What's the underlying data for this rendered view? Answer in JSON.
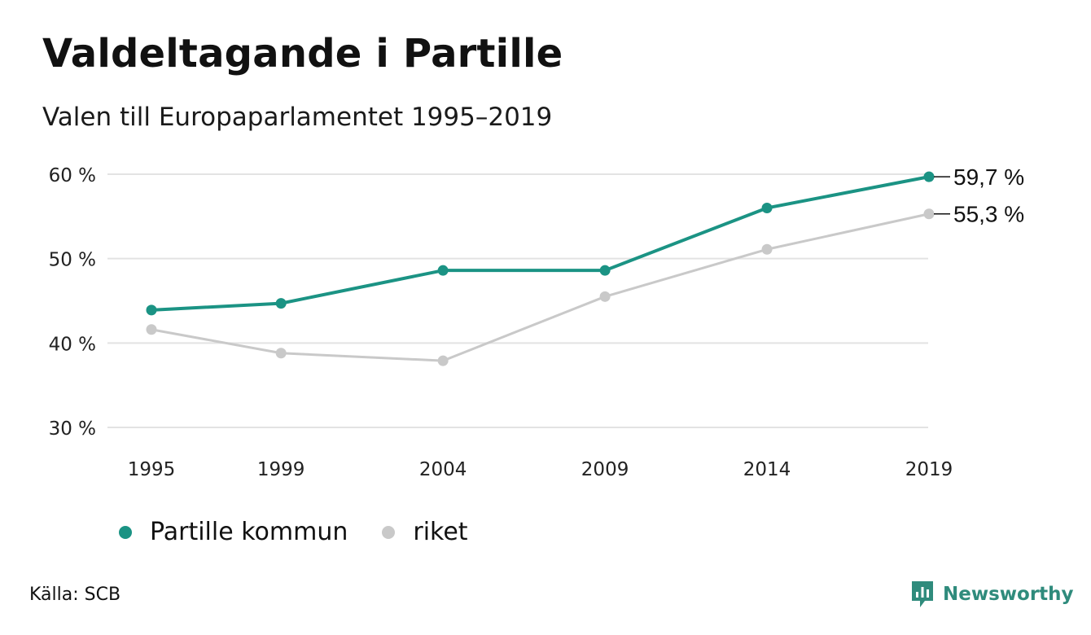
{
  "title": "Valdeltagande i Partille",
  "subtitle": "Valen till Europaparlamentet 1995–2019",
  "source": "Källa: SCB",
  "brand": "Newsworthy",
  "colors": {
    "partille": "#1b9384",
    "riket": "#c9c9c9",
    "grid": "#e3e3e3",
    "brand": "#2f8b7c"
  },
  "chart_data": {
    "type": "line",
    "x": [
      "1995",
      "1999",
      "2004",
      "2009",
      "2014",
      "2019"
    ],
    "x_numeric": [
      1995,
      1999,
      2004,
      2009,
      2014,
      2019
    ],
    "ylim": [
      30,
      60
    ],
    "yticks": [
      30,
      40,
      50,
      60
    ],
    "ytick_labels": [
      "30 %",
      "40 %",
      "50 %",
      "60 %"
    ],
    "grid": true,
    "legend_position": "bottom-left",
    "series": [
      {
        "name": "Partille kommun",
        "color_key": "partille",
        "values": [
          43.9,
          44.7,
          48.6,
          48.6,
          56.0,
          59.7
        ],
        "end_label": "59,7 %"
      },
      {
        "name": "riket",
        "color_key": "riket",
        "values": [
          41.6,
          38.8,
          37.9,
          45.5,
          51.1,
          55.3
        ],
        "end_label": "55,3 %"
      }
    ]
  }
}
